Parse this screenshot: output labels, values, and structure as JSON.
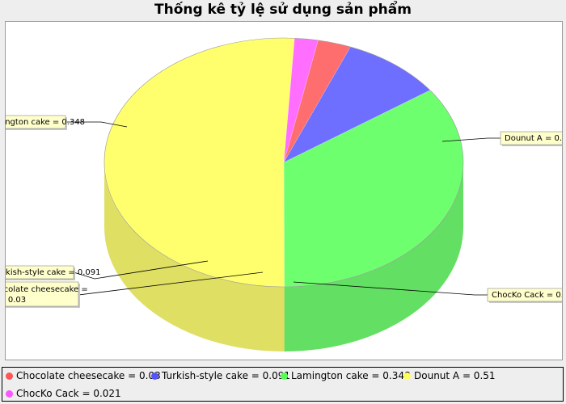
{
  "chart_data": {
    "type": "pie",
    "title": "Thống kê tỷ lệ sử dụng sản phẩm",
    "three_d": true,
    "slices": [
      {
        "name": "Chocolate cheesecake",
        "value": 0.03,
        "label": "Chocolate cheesecake = 0.03",
        "color": "#ff5555"
      },
      {
        "name": "Turkish-style cake",
        "value": 0.091,
        "label": "Turkish-style cake = 0.091",
        "color": "#5555ff"
      },
      {
        "name": "Lamington cake",
        "value": 0.348,
        "label": "Lamington cake = 0.348",
        "color": "#55ff55"
      },
      {
        "name": "Dounut A",
        "value": 0.51,
        "label": "Dounut A = 0.51",
        "color": "#ffff55"
      },
      {
        "name": "ChocKo Cack",
        "value": 0.021,
        "label": "ChocKo Cack = 0.021",
        "color": "#ff55ff"
      }
    ],
    "legend_position": "bottom"
  }
}
